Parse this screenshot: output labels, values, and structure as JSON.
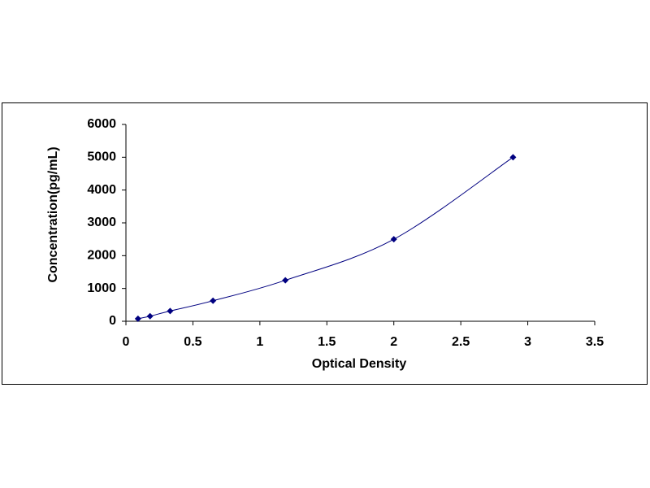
{
  "chart_data": {
    "type": "scatter",
    "x_label": "Optical Density",
    "y_label": "Concentration(pg/mL)",
    "series": [
      {
        "color": "#000080",
        "x": [
          0.09,
          0.18,
          0.33,
          0.65,
          1.19,
          2.0,
          2.89
        ],
        "values": [
          78,
          156,
          312,
          625,
          1250,
          2500,
          5000
        ]
      }
    ],
    "xlim": [
      0,
      3.5
    ],
    "xticks": [
      0,
      0.5,
      1,
      1.5,
      2,
      2.5,
      3,
      3.5
    ],
    "ylim": [
      0,
      6000
    ],
    "yticks": [
      0,
      1000,
      2000,
      3000,
      4000,
      5000,
      6000
    ],
    "grid": false,
    "trendline": "smooth"
  }
}
